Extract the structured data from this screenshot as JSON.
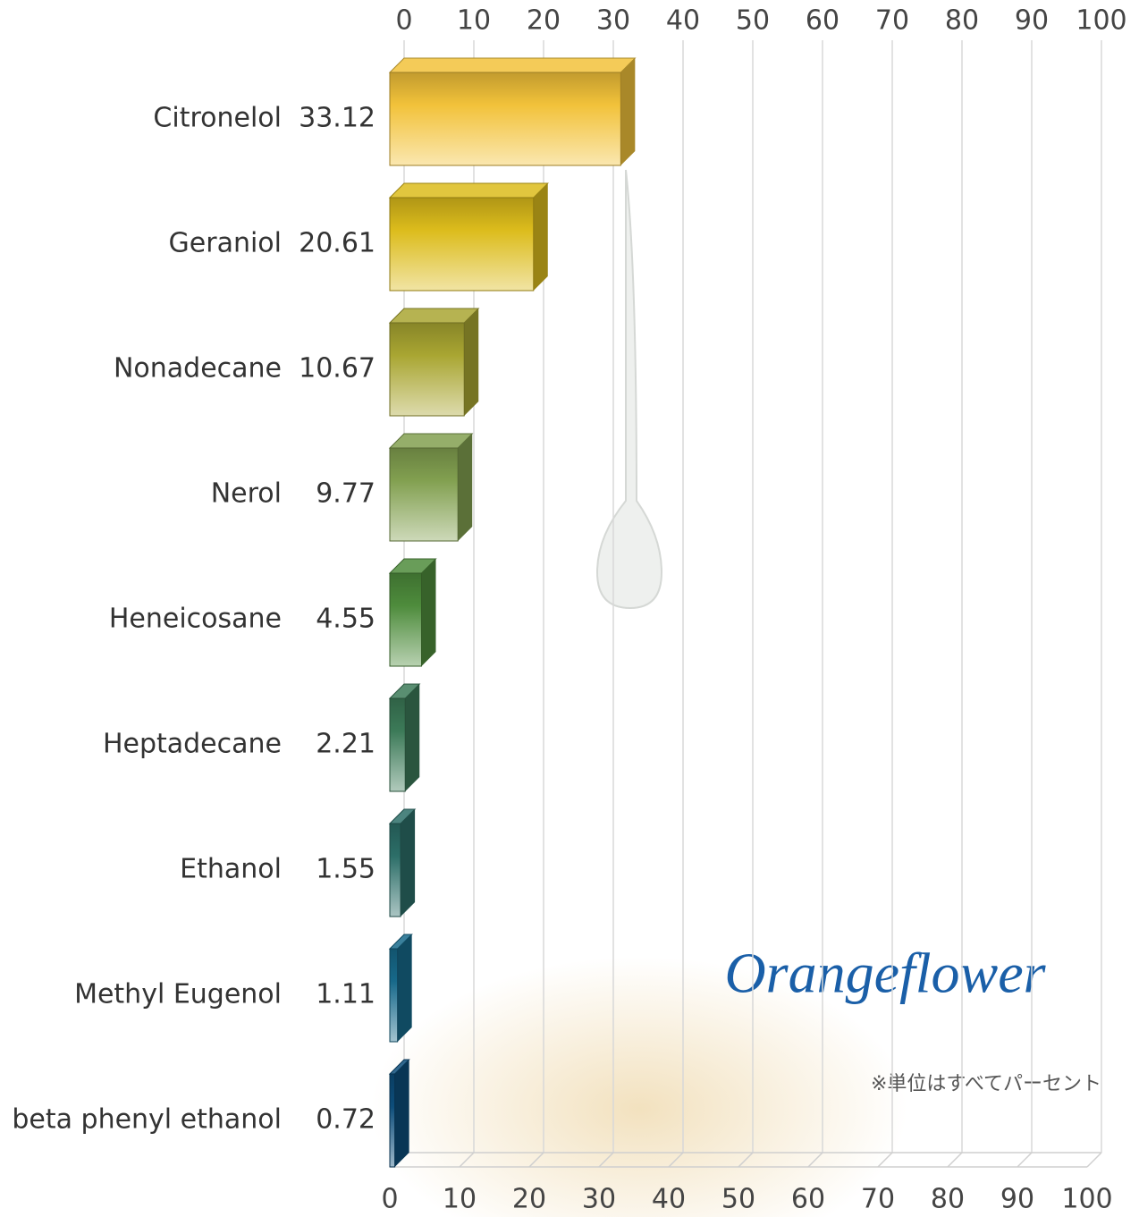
{
  "chart_data": {
    "type": "bar3d",
    "orientation": "horizontal",
    "categories": [
      "Citronelol",
      "Geraniol",
      "Nonadecane",
      "Nerol",
      "Heneicosane",
      "Heptadecane",
      "Ethanol",
      "Methyl Eugenol",
      "beta phenyl ethanol"
    ],
    "values": [
      33.12,
      20.61,
      10.67,
      9.77,
      4.55,
      2.21,
      1.55,
      1.11,
      0.72
    ],
    "colors": [
      "#f2c23a",
      "#dcbc1c",
      "#a9a632",
      "#82a050",
      "#4e8c3c",
      "#3c7a58",
      "#2c6e68",
      "#17698a",
      "#0d4d7a"
    ],
    "xlim": [
      0,
      100
    ],
    "xticks": [
      0,
      10,
      20,
      30,
      40,
      50,
      60,
      70,
      80,
      90,
      100
    ],
    "grid": true,
    "annotations": {
      "logo": "Orangeflower",
      "note": "※単位はすべてパーセント"
    }
  }
}
